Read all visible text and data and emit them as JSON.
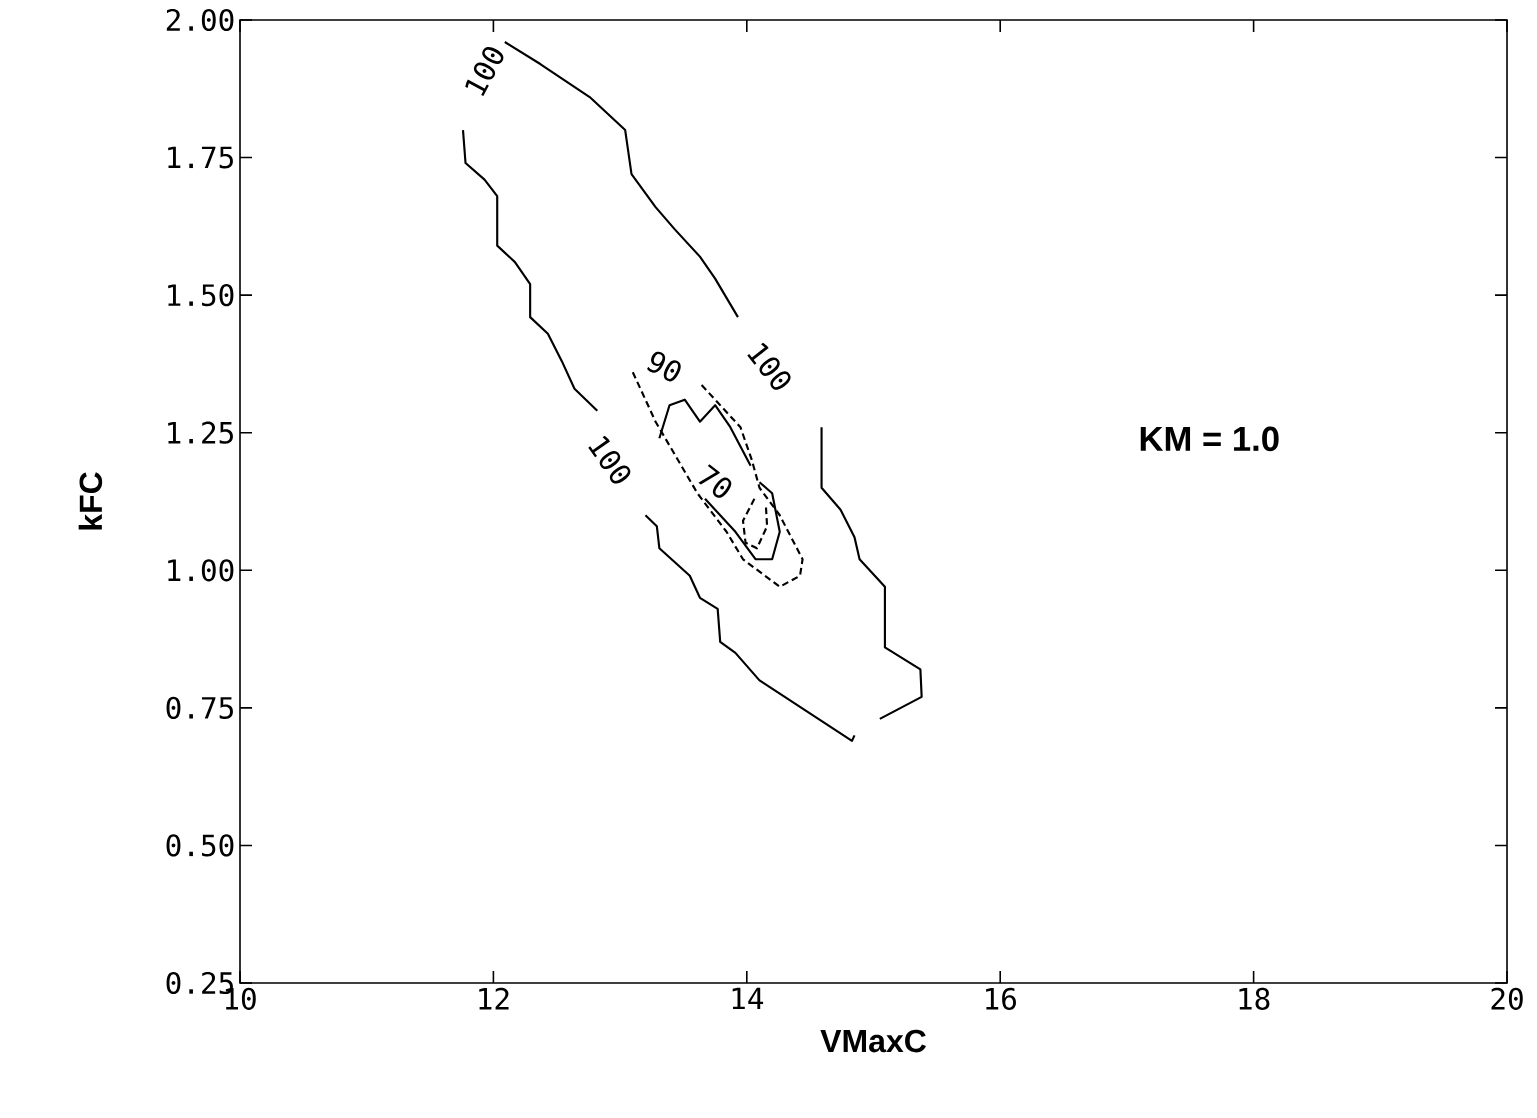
{
  "chart_data": {
    "type": "line",
    "xlabel": "VMaxC",
    "ylabel": "kFC",
    "xlim": [
      10,
      20
    ],
    "ylim": [
      0.25,
      2.0
    ],
    "xticks": [
      10,
      12,
      14,
      16,
      18,
      20
    ],
    "yticks": [
      {
        "value": 0.25,
        "label": "0.25"
      },
      {
        "value": 0.5,
        "label": "0.50"
      },
      {
        "value": 0.75,
        "label": "0.75"
      },
      {
        "value": 1.0,
        "label": "1.00"
      },
      {
        "value": 1.25,
        "label": "1.25"
      },
      {
        "value": 1.5,
        "label": "1.50"
      },
      {
        "value": 1.75,
        "label": "1.75"
      },
      {
        "value": 2.0,
        "label": "2.00"
      }
    ],
    "grid": false,
    "legend": false,
    "marker": "none",
    "series": [
      {
        "color": "#000000",
        "line_style": "solid",
        "x": [
          12.09,
          12.37,
          12.76,
          13.04,
          13.09,
          13.28,
          13.43,
          13.63,
          13.75,
          13.93,
          null,
          14.59,
          14.59,
          14.74,
          14.85,
          14.89,
          15.09,
          15.09,
          15.37,
          15.38,
          15.05,
          null,
          14.85,
          14.83,
          14.1,
          13.91,
          13.79,
          13.77,
          13.63,
          13.55,
          13.31,
          13.29,
          13.2,
          null,
          12.82,
          12.64,
          12.54,
          12.43,
          12.29,
          12.29,
          12.17,
          12.03,
          12.03,
          11.93,
          11.78,
          11.76
        ],
        "values": [
          1.96,
          1.92,
          1.86,
          1.8,
          1.72,
          1.66,
          1.62,
          1.57,
          1.53,
          1.46,
          null,
          1.26,
          1.15,
          1.11,
          1.06,
          1.02,
          0.97,
          0.86,
          0.82,
          0.77,
          0.73,
          null,
          0.7,
          0.69,
          0.8,
          0.85,
          0.87,
          0.93,
          0.95,
          0.99,
          1.04,
          1.08,
          1.1,
          null,
          1.29,
          1.33,
          1.38,
          1.43,
          1.46,
          1.52,
          1.56,
          1.59,
          1.68,
          1.71,
          1.74,
          1.8
        ]
      },
      {
        "color": "#000000",
        "line_style": "dashed",
        "x": [
          13.1,
          13.28,
          13.61,
          13.84,
          13.97,
          14.26,
          14.42,
          14.44,
          14.26,
          14.1,
          14.04,
          13.95,
          13.75,
          13.63
        ],
        "values": [
          1.36,
          1.27,
          1.14,
          1.07,
          1.02,
          0.97,
          0.99,
          1.02,
          1.1,
          1.15,
          1.2,
          1.26,
          1.31,
          1.34
        ]
      },
      {
        "color": "#000000",
        "line_style": "solid",
        "x": [
          13.67,
          13.91,
          14.07,
          14.2,
          14.26,
          14.2,
          14.1
        ],
        "values": [
          1.13,
          1.07,
          1.02,
          1.02,
          1.07,
          1.14,
          1.16
        ]
      },
      {
        "color": "#000000",
        "line_style": "solid",
        "x": [
          13.31,
          13.39,
          13.51,
          13.63,
          13.75,
          13.87,
          14.03
        ],
        "values": [
          1.24,
          1.3,
          1.31,
          1.27,
          1.3,
          1.26,
          1.19
        ]
      },
      {
        "color": "#000000",
        "line_style": "dashed",
        "x": [
          14.06,
          13.97,
          13.99,
          14.08,
          14.16,
          14.15
        ],
        "values": [
          1.13,
          1.09,
          1.05,
          1.04,
          1.08,
          1.12
        ]
      }
    ],
    "annotations": [
      "100",
      "100",
      "100",
      "90",
      "70",
      "KM = 1.0"
    ]
  }
}
